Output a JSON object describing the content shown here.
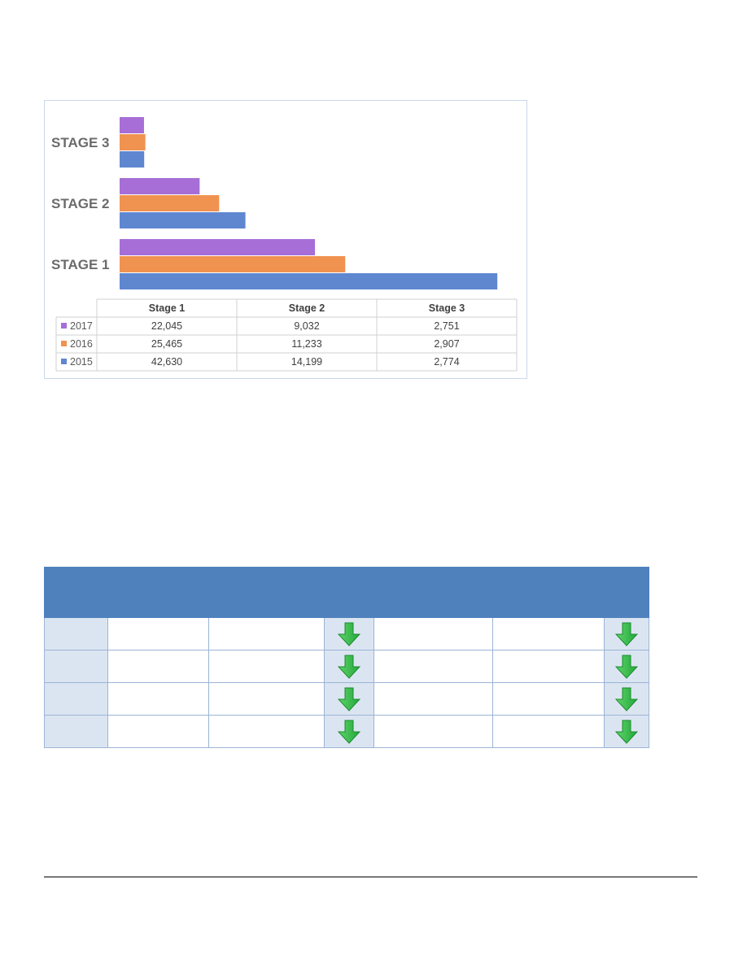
{
  "chart_data": {
    "type": "bar",
    "orientation": "horizontal",
    "category_labels": [
      "STAGE 3",
      "STAGE 2",
      "STAGE 1"
    ],
    "categories": [
      "Stage 1",
      "Stage 2",
      "Stage 3"
    ],
    "series": [
      {
        "name": "2017",
        "values": [
          22045,
          9032,
          2751
        ],
        "display": [
          "22,045",
          "9,032",
          "2,751"
        ],
        "color": "#a66ed6"
      },
      {
        "name": "2016",
        "values": [
          25465,
          11233,
          2907
        ],
        "display": [
          "25,465",
          "11,233",
          "2,907"
        ],
        "color": "#f09250"
      },
      {
        "name": "2015",
        "values": [
          42630,
          14199,
          2774
        ],
        "display": [
          "42,630",
          "14,199",
          "2,774"
        ],
        "color": "#5f87d0"
      }
    ],
    "xlim": [
      0,
      45000
    ],
    "grid": false,
    "legend": "data-table"
  },
  "icons": {
    "down": "down-arrow-icon",
    "down_color": "#22a83a"
  },
  "indicator_table": {
    "header_color": "#4f81bd",
    "row_color": "#dbe5f1",
    "rows": 4
  }
}
